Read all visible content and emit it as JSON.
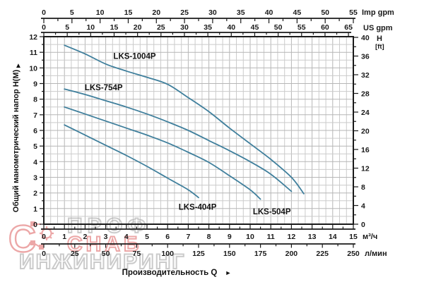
{
  "chart_data": {
    "type": "line",
    "title": "",
    "xlabel": "Производительность Q",
    "xlabel_arrow": "►",
    "x_axes": {
      "imp_gpm": {
        "label": "Imp gpm",
        "min": 0,
        "max": 55,
        "major": 5,
        "minor": 2.5
      },
      "us_gpm": {
        "label": "US gpm",
        "min": 0,
        "max": 65,
        "major": 5,
        "minor": 2.5
      },
      "m3h": {
        "label": "м³/ч",
        "min": 0,
        "max": 15,
        "major": 1,
        "minor": 0.5
      },
      "lmin": {
        "label": "л/мин",
        "min": 0,
        "max": 250,
        "major": 25,
        "minor": 12.5
      }
    },
    "y_axes": {
      "meters": {
        "label": "Общий манометрический напор Н(М)",
        "arrow": "▲",
        "min": 0,
        "max": 12,
        "major": 1,
        "minor": 0.5
      },
      "feet": {
        "label_h": "H",
        "label_unit": "[ft]",
        "min": 0,
        "max": 40,
        "major": 4,
        "minor": 2
      }
    },
    "grid": {
      "x_step": 0.3333,
      "y_step": 0.5,
      "minor_color": "#cbcbcb",
      "major_color": "#b6b6b6"
    },
    "curve_color": "#3f7f9c",
    "series": [
      {
        "name": "LKS-1004P",
        "points": [
          [
            1,
            11.45
          ],
          [
            2,
            10.9
          ],
          [
            3,
            10.25
          ],
          [
            4,
            9.8
          ],
          [
            5,
            9.4
          ],
          [
            6,
            8.95
          ],
          [
            7,
            8.1
          ],
          [
            8,
            7.2
          ],
          [
            9,
            6.15
          ],
          [
            10,
            5.15
          ],
          [
            11,
            4.15
          ],
          [
            12,
            3.0
          ],
          [
            12.6,
            1.95
          ]
        ],
        "label_pos": [
          4.4,
          10.75
        ]
      },
      {
        "name": "LKS-754P",
        "points": [
          [
            1,
            8.65
          ],
          [
            2,
            8.3
          ],
          [
            3,
            7.9
          ],
          [
            4,
            7.5
          ],
          [
            5,
            7.05
          ],
          [
            6,
            6.55
          ],
          [
            7,
            6.0
          ],
          [
            8,
            5.35
          ],
          [
            9,
            4.7
          ],
          [
            10,
            4.0
          ],
          [
            11,
            3.2
          ],
          [
            12,
            2.1
          ]
        ],
        "label_pos": [
          2.9,
          8.75
        ]
      },
      {
        "name": "LKS-504P",
        "points": [
          [
            1,
            7.5
          ],
          [
            2,
            7.05
          ],
          [
            3,
            6.6
          ],
          [
            4,
            6.15
          ],
          [
            5,
            5.7
          ],
          [
            6,
            5.2
          ],
          [
            7,
            4.6
          ],
          [
            8,
            3.95
          ],
          [
            9,
            3.1
          ],
          [
            10,
            2.2
          ],
          [
            10.5,
            1.6
          ]
        ],
        "label_pos": [
          11.05,
          0.82
        ]
      },
      {
        "name": "LKS-404P",
        "points": [
          [
            1,
            6.35
          ],
          [
            2,
            5.7
          ],
          [
            3,
            5.05
          ],
          [
            4,
            4.4
          ],
          [
            5,
            3.7
          ],
          [
            6,
            2.95
          ],
          [
            7,
            2.2
          ],
          [
            7.5,
            1.7
          ]
        ],
        "label_pos": [
          7.45,
          1.1
        ]
      }
    ]
  },
  "watermark": {
    "letter": "С",
    "word1": "ПРОФ",
    "word2": "СНАБ",
    "word3": "ИНЖИНИРИНГ",
    "color_red": "#dd6161",
    "color_gray": "#a2a2a2"
  }
}
